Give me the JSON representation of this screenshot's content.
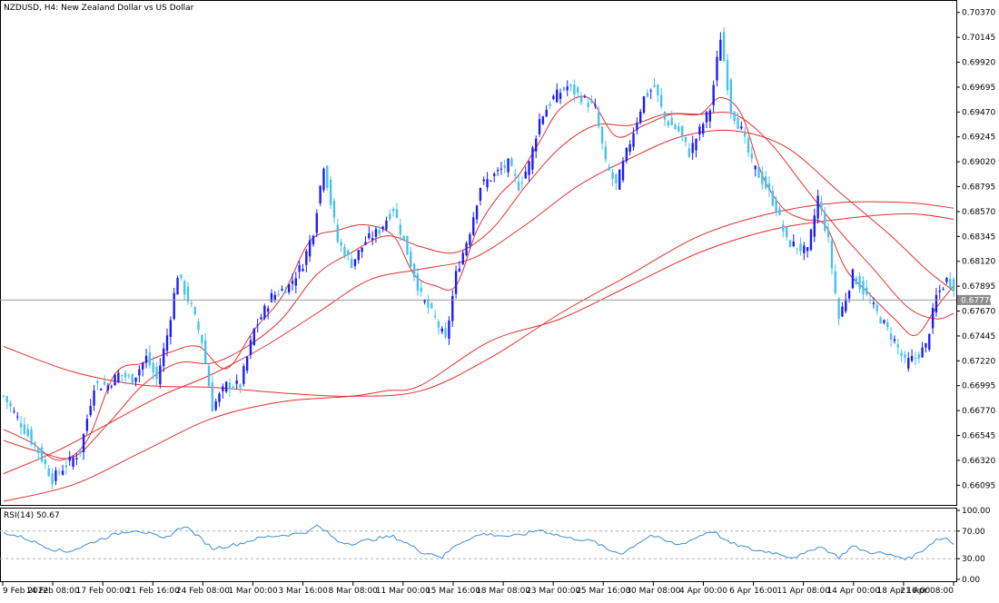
{
  "header": {
    "symbol_text": "NZDUSD, H4:  New Zealand Dollar vs US Dollar"
  },
  "rsi_panel": {
    "label": "RSI(14) 50.67"
  },
  "current_price_label": "0.67770",
  "colors": {
    "bull_candle": "#1a1aff",
    "bear_candle": "#47c1f0",
    "moving_average": "#e23030",
    "rsi_line": "#3b8fd9",
    "price_line": "#9a9a9a"
  },
  "chart_data": [
    {
      "type": "candlestick",
      "title": "NZDUSD, H4:  New Zealand Dollar vs US Dollar",
      "y_ticks": [
        "0.70370",
        "0.70145",
        "0.69920",
        "0.69695",
        "0.69470",
        "0.69245",
        "0.69020",
        "0.68795",
        "0.68570",
        "0.68345",
        "0.68120",
        "0.67895",
        "0.67670",
        "0.67445",
        "0.67220",
        "0.66995",
        "0.66770",
        "0.66545",
        "0.66320",
        "0.66095"
      ],
      "ylim": [
        0.6595,
        0.7045
      ],
      "current_price": 0.6777,
      "x_tick_labels": [
        "9 Feb 2022",
        "14 Feb 08:00",
        "17 Feb 00:00",
        "21 Feb 16:00",
        "24 Feb 08:00",
        "1 Mar 00:00",
        "3 Mar 16:00",
        "8 Mar 08:00",
        "11 Mar 00:00",
        "15 Mar 16:00",
        "18 Mar 08:00",
        "23 Mar 00:00",
        "25 Mar 16:00",
        "30 Mar 08:00",
        "4 Apr 00:00",
        "6 Apr 16:00",
        "11 Apr 08:00",
        "14 Apr 00:00",
        "18 Apr 16:00",
        "21 Apr 08:00"
      ],
      "close_path": [
        [
          0,
          0.669
        ],
        [
          10,
          0.664
        ],
        [
          14,
          0.6615
        ],
        [
          17,
          0.6625
        ],
        [
          22,
          0.664
        ],
        [
          26,
          0.67
        ],
        [
          30,
          0.67
        ],
        [
          33,
          0.671
        ],
        [
          37,
          0.6705
        ],
        [
          41,
          0.6725
        ],
        [
          44,
          0.6705
        ],
        [
          47,
          0.6745
        ],
        [
          50,
          0.68
        ],
        [
          54,
          0.677
        ],
        [
          57,
          0.674
        ],
        [
          60,
          0.668
        ],
        [
          64,
          0.67
        ],
        [
          68,
          0.67
        ],
        [
          72,
          0.675
        ],
        [
          77,
          0.678
        ],
        [
          82,
          0.679
        ],
        [
          86,
          0.681
        ],
        [
          89,
          0.684
        ],
        [
          92,
          0.69
        ],
        [
          96,
          0.683
        ],
        [
          100,
          0.681
        ],
        [
          104,
          0.683
        ],
        [
          108,
          0.684
        ],
        [
          112,
          0.686
        ],
        [
          116,
          0.682
        ],
        [
          120,
          0.678
        ],
        [
          124,
          0.676
        ],
        [
          127,
          0.674
        ],
        [
          130,
          0.68
        ],
        [
          134,
          0.684
        ],
        [
          137,
          0.688
        ],
        [
          141,
          0.689
        ],
        [
          145,
          0.69
        ],
        [
          148,
          0.688
        ],
        [
          151,
          0.69
        ],
        [
          154,
          0.694
        ],
        [
          158,
          0.696
        ],
        [
          162,
          0.697
        ],
        [
          166,
          0.696
        ],
        [
          170,
          0.695
        ],
        [
          173,
          0.69
        ],
        [
          176,
          0.688
        ],
        [
          180,
          0.692
        ],
        [
          184,
          0.696
        ],
        [
          187,
          0.697
        ],
        [
          190,
          0.694
        ],
        [
          194,
          0.693
        ],
        [
          197,
          0.691
        ],
        [
          200,
          0.693
        ],
        [
          203,
          0.695
        ],
        [
          206,
          0.7015
        ],
        [
          209,
          0.695
        ],
        [
          212,
          0.693
        ],
        [
          215,
          0.69
        ],
        [
          219,
          0.688
        ],
        [
          222,
          0.686
        ],
        [
          225,
          0.683
        ],
        [
          228,
          0.6825
        ],
        [
          231,
          0.682
        ],
        [
          234,
          0.687
        ],
        [
          237,
          0.683
        ],
        [
          240,
          0.676
        ],
        [
          244,
          0.68
        ],
        [
          248,
          0.678
        ],
        [
          252,
          0.676
        ],
        [
          256,
          0.674
        ],
        [
          259,
          0.672
        ],
        [
          262,
          0.6725
        ],
        [
          265,
          0.6735
        ],
        [
          268,
          0.678
        ],
        [
          271,
          0.6795
        ],
        [
          273,
          0.679
        ]
      ],
      "series": [
        {
          "name": "",
          "values": [
            [
              0,
              0.666
            ],
            [
              8,
              0.6648
            ],
            [
              16,
              0.6632
            ],
            [
              24,
              0.665
            ],
            [
              32,
              0.671
            ],
            [
              40,
              0.672
            ],
            [
              48,
              0.673
            ],
            [
              56,
              0.6735
            ],
            [
              64,
              0.6715
            ],
            [
              72,
              0.675
            ],
            [
              80,
              0.678
            ],
            [
              88,
              0.683
            ],
            [
              96,
              0.684
            ],
            [
              104,
              0.6845
            ],
            [
              112,
              0.6835
            ],
            [
              118,
              0.68
            ],
            [
              124,
              0.679
            ],
            [
              130,
              0.679
            ],
            [
              136,
              0.684
            ],
            [
              142,
              0.687
            ],
            [
              148,
              0.689
            ],
            [
              154,
              0.692
            ],
            [
              160,
              0.695
            ],
            [
              168,
              0.696
            ],
            [
              176,
              0.6925
            ],
            [
              184,
              0.6935
            ],
            [
              192,
              0.6945
            ],
            [
              200,
              0.6945
            ],
            [
              206,
              0.696
            ],
            [
              212,
              0.6945
            ],
            [
              218,
              0.689
            ],
            [
              224,
              0.686
            ],
            [
              230,
              0.685
            ],
            [
              236,
              0.6845
            ],
            [
              242,
              0.6805
            ],
            [
              248,
              0.6785
            ],
            [
              256,
              0.676
            ],
            [
              262,
              0.6745
            ],
            [
              268,
              0.677
            ],
            [
              273,
              0.679
            ]
          ]
        },
        {
          "name": "",
          "values": [
            [
              0,
              0.665
            ],
            [
              10,
              0.664
            ],
            [
              20,
              0.6635
            ],
            [
              30,
              0.6665
            ],
            [
              40,
              0.67
            ],
            [
              50,
              0.672
            ],
            [
              60,
              0.672
            ],
            [
              70,
              0.6735
            ],
            [
              80,
              0.676
            ],
            [
              90,
              0.68
            ],
            [
              100,
              0.682
            ],
            [
              110,
              0.6835
            ],
            [
              120,
              0.6825
            ],
            [
              130,
              0.682
            ],
            [
              140,
              0.684
            ],
            [
              150,
              0.688
            ],
            [
              160,
              0.6915
            ],
            [
              170,
              0.6935
            ],
            [
              180,
              0.6935
            ],
            [
              190,
              0.6945
            ],
            [
              200,
              0.6945
            ],
            [
              210,
              0.6945
            ],
            [
              220,
              0.692
            ],
            [
              230,
              0.688
            ],
            [
              240,
              0.684
            ],
            [
              250,
              0.6805
            ],
            [
              260,
              0.677
            ],
            [
              268,
              0.676
            ],
            [
              273,
              0.6765
            ]
          ]
        },
        {
          "name": "",
          "values": [
            [
              0,
              0.662
            ],
            [
              15,
              0.664
            ],
            [
              30,
              0.6665
            ],
            [
              45,
              0.669
            ],
            [
              60,
              0.671
            ],
            [
              75,
              0.6735
            ],
            [
              90,
              0.6765
            ],
            [
              105,
              0.6795
            ],
            [
              120,
              0.6805
            ],
            [
              135,
              0.6815
            ],
            [
              150,
              0.6845
            ],
            [
              165,
              0.688
            ],
            [
              180,
              0.6905
            ],
            [
              195,
              0.6925
            ],
            [
              210,
              0.693
            ],
            [
              225,
              0.6915
            ],
            [
              240,
              0.6875
            ],
            [
              255,
              0.6835
            ],
            [
              265,
              0.6805
            ],
            [
              273,
              0.6785
            ]
          ]
        },
        {
          "name": "",
          "values": [
            [
              0,
              0.6735
            ],
            [
              20,
              0.6712
            ],
            [
              40,
              0.67
            ],
            [
              60,
              0.6698
            ],
            [
              80,
              0.6693
            ],
            [
              100,
              0.669
            ],
            [
              120,
              0.6695
            ],
            [
              140,
              0.6725
            ],
            [
              160,
              0.6765
            ],
            [
              180,
              0.68
            ],
            [
              200,
              0.6835
            ],
            [
              220,
              0.6855
            ],
            [
              240,
              0.6865
            ],
            [
              260,
              0.6865
            ],
            [
              273,
              0.686
            ]
          ]
        },
        {
          "name": "",
          "values": [
            [
              0,
              0.6595
            ],
            [
              20,
              0.661
            ],
            [
              40,
              0.664
            ],
            [
              60,
              0.667
            ],
            [
              80,
              0.6685
            ],
            [
              100,
              0.669
            ],
            [
              110,
              0.6695
            ],
            [
              120,
              0.67
            ],
            [
              140,
              0.674
            ],
            [
              160,
              0.676
            ],
            [
              180,
              0.679
            ],
            [
              200,
              0.682
            ],
            [
              220,
              0.684
            ],
            [
              240,
              0.685
            ],
            [
              260,
              0.6855
            ],
            [
              273,
              0.685
            ]
          ]
        }
      ]
    },
    {
      "type": "line",
      "title": "RSI(14) 50.67",
      "y_ticks": [
        "100.00",
        "70.00",
        "30.00",
        "0.00"
      ],
      "ylim": [
        0,
        100
      ],
      "reference_levels": [
        70,
        30
      ],
      "series": [
        {
          "name": "RSI(14)",
          "values": [
            [
              0,
              68
            ],
            [
              6,
              60
            ],
            [
              10,
              52
            ],
            [
              14,
              44
            ],
            [
              18,
              40
            ],
            [
              22,
              46
            ],
            [
              26,
              55
            ],
            [
              30,
              62
            ],
            [
              34,
              68
            ],
            [
              38,
              72
            ],
            [
              42,
              66
            ],
            [
              46,
              58
            ],
            [
              50,
              72
            ],
            [
              52,
              78
            ],
            [
              56,
              62
            ],
            [
              60,
              45
            ],
            [
              64,
              48
            ],
            [
              68,
              52
            ],
            [
              72,
              58
            ],
            [
              76,
              62
            ],
            [
              80,
              64
            ],
            [
              84,
              66
            ],
            [
              88,
              70
            ],
            [
              90,
              78
            ],
            [
              93,
              68
            ],
            [
              96,
              55
            ],
            [
              100,
              52
            ],
            [
              104,
              56
            ],
            [
              108,
              60
            ],
            [
              112,
              62
            ],
            [
              116,
              52
            ],
            [
              120,
              40
            ],
            [
              124,
              36
            ],
            [
              126,
              32
            ],
            [
              130,
              50
            ],
            [
              134,
              60
            ],
            [
              138,
              66
            ],
            [
              142,
              64
            ],
            [
              146,
              62
            ],
            [
              150,
              66
            ],
            [
              154,
              72
            ],
            [
              158,
              66
            ],
            [
              162,
              60
            ],
            [
              166,
              58
            ],
            [
              170,
              54
            ],
            [
              174,
              42
            ],
            [
              178,
              38
            ],
            [
              182,
              52
            ],
            [
              186,
              64
            ],
            [
              190,
              56
            ],
            [
              194,
              50
            ],
            [
              198,
              58
            ],
            [
              202,
              68
            ],
            [
              204,
              70
            ],
            [
              208,
              54
            ],
            [
              212,
              48
            ],
            [
              216,
              42
            ],
            [
              220,
              40
            ],
            [
              224,
              36
            ],
            [
              226,
              32
            ],
            [
              230,
              36
            ],
            [
              234,
              48
            ],
            [
              236,
              44
            ],
            [
              240,
              32
            ],
            [
              244,
              48
            ],
            [
              248,
              40
            ],
            [
              252,
              38
            ],
            [
              256,
              34
            ],
            [
              260,
              30
            ],
            [
              264,
              42
            ],
            [
              268,
              58
            ],
            [
              271,
              60
            ],
            [
              273,
              50.67
            ]
          ]
        }
      ]
    }
  ]
}
